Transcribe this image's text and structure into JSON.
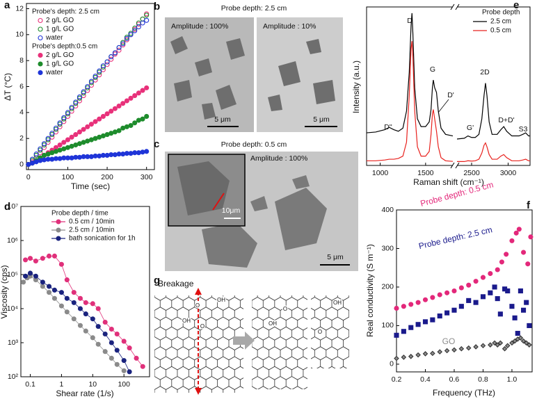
{
  "chart_data": [
    {
      "panel": "a",
      "type": "scatter",
      "x_label": "Time (sec)",
      "y_label": "ΔT (°C)",
      "xlim": [
        -5,
        320
      ],
      "ylim": [
        -0.4,
        12.4
      ],
      "xticks": [
        0,
        100,
        200,
        300
      ],
      "yticks": [
        0,
        2,
        4,
        6,
        8,
        10,
        12
      ],
      "x": [
        0,
        10,
        20,
        30,
        40,
        50,
        60,
        70,
        80,
        90,
        100,
        110,
        120,
        130,
        140,
        150,
        160,
        170,
        180,
        190,
        200,
        210,
        220,
        230,
        240,
        250,
        260,
        270,
        280,
        290,
        300
      ],
      "series_groups": [
        {
          "title": "Probe's depth: 2.5 cm",
          "series": [
            {
              "name": "2 g/L GO",
              "color": "#e8317a",
              "marker": "circle",
              "filled": false,
              "values": [
                0,
                0.2,
                0.5,
                0.9,
                1.3,
                1.7,
                2.1,
                2.5,
                2.9,
                3.3,
                3.7,
                4.1,
                4.5,
                4.9,
                5.3,
                5.7,
                6.1,
                6.5,
                6.9,
                7.3,
                7.7,
                8.1,
                8.5,
                8.8,
                9.2,
                9.6,
                10.0,
                10.4,
                10.8,
                11.2,
                11.6
              ]
            },
            {
              "name": "1 g/L GO",
              "color": "#1e8c2c",
              "marker": "circle",
              "filled": false,
              "values": [
                0,
                0.3,
                0.7,
                1.1,
                1.5,
                1.9,
                2.3,
                2.7,
                3.1,
                3.5,
                3.9,
                4.3,
                4.7,
                5.1,
                5.5,
                5.9,
                6.3,
                6.7,
                7.1,
                7.5,
                7.9,
                8.3,
                8.6,
                9.0,
                9.4,
                9.8,
                10.1,
                10.5,
                10.9,
                11.2,
                11.5
              ]
            },
            {
              "name": "water",
              "color": "#1f35d8",
              "marker": "circle",
              "filled": false,
              "values": [
                0,
                0.4,
                0.8,
                1.2,
                1.6,
                2.0,
                2.4,
                2.8,
                3.2,
                3.6,
                4.0,
                4.4,
                4.8,
                5.2,
                5.6,
                6.0,
                6.4,
                6.8,
                7.2,
                7.6,
                7.9,
                8.3,
                8.6,
                9.0,
                9.3,
                9.7,
                10.0,
                10.3,
                10.6,
                10.9,
                11.1
              ]
            }
          ]
        },
        {
          "title": "Probe's depth:0.5 cm",
          "series": [
            {
              "name": "2 g/L GO",
              "color": "#e8317a",
              "marker": "circle",
              "filled": true,
              "values": [
                0,
                0.1,
                0.3,
                0.5,
                0.7,
                0.9,
                1.1,
                1.3,
                1.5,
                1.7,
                1.9,
                2.1,
                2.3,
                2.5,
                2.7,
                2.9,
                3.1,
                3.3,
                3.5,
                3.7,
                3.9,
                4.1,
                4.3,
                4.5,
                4.7,
                4.9,
                5.1,
                5.3,
                5.5,
                5.7,
                5.9
              ]
            },
            {
              "name": "1 g/L GO",
              "color": "#1e8c2c",
              "marker": "circle",
              "filled": true,
              "values": [
                0,
                0.1,
                0.3,
                0.5,
                0.7,
                0.8,
                0.9,
                1.0,
                1.1,
                1.2,
                1.3,
                1.4,
                1.5,
                1.6,
                1.7,
                1.8,
                1.9,
                2.0,
                2.1,
                2.2,
                2.3,
                2.4,
                2.5,
                2.6,
                2.8,
                2.9,
                3.0,
                3.2,
                3.4,
                3.5,
                3.7
              ]
            },
            {
              "name": "water",
              "color": "#1f35d8",
              "marker": "circle",
              "filled": true,
              "values": [
                0,
                0.1,
                0.2,
                0.3,
                0.35,
                0.4,
                0.4,
                0.45,
                0.45,
                0.5,
                0.5,
                0.5,
                0.55,
                0.55,
                0.6,
                0.6,
                0.6,
                0.65,
                0.65,
                0.7,
                0.7,
                0.75,
                0.75,
                0.8,
                0.8,
                0.85,
                0.85,
                0.9,
                0.9,
                0.95,
                1.0
              ]
            }
          ]
        }
      ]
    },
    {
      "panel": "d",
      "type": "line",
      "x_label": "Shear rate (1/s)",
      "y_label": "Viscosity (cps)",
      "xlog": true,
      "ylog": true,
      "xlim": [
        0.05,
        660
      ],
      "ylim": [
        100,
        10000000
      ],
      "xticks": [
        0.1,
        1,
        10,
        100
      ],
      "yticks": [
        {
          "value": 100,
          "label": "10²"
        },
        {
          "value": 1000,
          "label": "10³"
        },
        {
          "value": 10000,
          "label": "10⁴"
        },
        {
          "value": 100000,
          "label": "10⁵"
        },
        {
          "value": 1000000,
          "label": "10⁶"
        },
        {
          "value": 10000000,
          "label": "10⁷"
        }
      ],
      "legend_title": "Probe depth / time",
      "series": [
        {
          "name": "0.5 cm / 10min",
          "color": "#e0307a",
          "marker": "circle",
          "filled": true,
          "x": [
            0.07,
            0.1,
            0.15,
            0.25,
            0.4,
            0.6,
            1,
            1.5,
            2.5,
            4,
            6,
            10,
            15,
            25,
            40,
            60,
            100,
            150,
            250,
            400
          ],
          "values": [
            270000,
            300000,
            250000,
            300000,
            350000,
            350000,
            200000,
            70000,
            30000,
            20000,
            15000,
            14000,
            10000,
            4000,
            2500,
            1800,
            1100,
            700,
            350,
            200
          ]
        },
        {
          "name": "2.5 cm / 10min",
          "color": "#8a8a8a",
          "marker": "circle",
          "filled": true,
          "x": [
            0.06,
            0.08,
            0.1,
            0.15,
            0.25,
            0.4,
            0.6,
            1,
            1.5,
            2.5,
            4,
            6,
            10,
            15,
            25,
            40,
            60,
            100
          ],
          "values": [
            60000,
            80000,
            90000,
            70000,
            45000,
            30000,
            20000,
            12000,
            8000,
            5000,
            3200,
            2200,
            1400,
            900,
            550,
            350,
            230,
            150
          ]
        },
        {
          "name": "bath sonication for 1h",
          "color": "#1a237e",
          "marker": "circle",
          "filled": true,
          "x": [
            0.07,
            0.1,
            0.15,
            0.25,
            0.4,
            0.6,
            1,
            1.5,
            2.5,
            4,
            6,
            10,
            15,
            25,
            40,
            60,
            100,
            150
          ],
          "values": [
            90000,
            110000,
            90000,
            60000,
            45000,
            35000,
            30000,
            20000,
            15000,
            10000,
            7000,
            5000,
            3000,
            1800,
            1000,
            600,
            300,
            140
          ]
        }
      ]
    },
    {
      "panel": "e",
      "type": "line",
      "x_label": "Raman shift (cm⁻¹)",
      "y_label": "Intensity (a.u.)",
      "ylim": [
        0,
        102
      ],
      "x_segments": [
        {
          "xlim": [
            850,
            1800
          ],
          "xticks": [
            1000,
            1500
          ]
        },
        {
          "xlim": [
            2300,
            3300
          ],
          "xticks": [
            2500,
            3000
          ]
        }
      ],
      "x": [
        850,
        950,
        1050,
        1100,
        1150,
        1200,
        1250,
        1290,
        1320,
        1340,
        1350,
        1360,
        1380,
        1410,
        1450,
        1500,
        1540,
        1560,
        1575,
        1585,
        1600,
        1620,
        1640,
        1670,
        1720,
        1800,
        2300,
        2400,
        2450,
        2500,
        2550,
        2600,
        2640,
        2670,
        2690,
        2710,
        2740,
        2780,
        2850,
        2900,
        2940,
        2980,
        3050,
        3150,
        3200,
        3240,
        3280,
        3300
      ],
      "legend_title": "Probe depth",
      "annotations": [
        "D",
        "G",
        "D'",
        "D''",
        "G'",
        "2D",
        "D+D'",
        "S3"
      ],
      "series": [
        {
          "name": "2.5 cm",
          "color": "#000000",
          "values": [
            21,
            21.5,
            23,
            24.5,
            23,
            22,
            24,
            35,
            60,
            90,
            98,
            85,
            50,
            30,
            25,
            25,
            28,
            36,
            50,
            55,
            50,
            47,
            35,
            24,
            20,
            19,
            17,
            17.5,
            19,
            18,
            18,
            20,
            30,
            45,
            53,
            45,
            28,
            20,
            20,
            23,
            25,
            22,
            19,
            19,
            20,
            21,
            19,
            19
          ]
        },
        {
          "name": "0.5 cm",
          "color": "#e8211d",
          "values": [
            3,
            3,
            3.5,
            4,
            4,
            4.5,
            6,
            15,
            45,
            75,
            80,
            70,
            35,
            12,
            6,
            6,
            9,
            20,
            33,
            36,
            30,
            22,
            12,
            5,
            3,
            2.6,
            2.5,
            2.5,
            3,
            2.8,
            3,
            4,
            8,
            13,
            14.5,
            12,
            7,
            4,
            4,
            6,
            7,
            5,
            3,
            3,
            3.5,
            4,
            3,
            3
          ]
        }
      ]
    },
    {
      "panel": "f",
      "type": "scatter",
      "x_label": "Frequency (THz)",
      "y_label": "Real conductivity (S m⁻¹)",
      "xlim": [
        0.2,
        1.14
      ],
      "ylim": [
        -20,
        400
      ],
      "xticks": [
        0.2,
        0.4,
        0.6,
        0.8,
        {
          "value": 1,
          "label": "1.0"
        }
      ],
      "yticks": [
        0,
        100,
        200,
        300,
        400
      ],
      "series": [
        {
          "name": "Probe depth: 0.5 cm",
          "color": "#e3287a",
          "marker": "circle",
          "filled": true,
          "x": [
            0.2,
            0.25,
            0.3,
            0.35,
            0.4,
            0.45,
            0.5,
            0.55,
            0.6,
            0.65,
            0.7,
            0.75,
            0.8,
            0.85,
            0.9,
            0.93,
            0.96,
            1.0,
            1.03,
            1.05,
            1.08,
            1.11,
            1.13
          ],
          "values": [
            145,
            150,
            155,
            160,
            167,
            173,
            180,
            185,
            190,
            198,
            205,
            215,
            225,
            235,
            245,
            265,
            285,
            320,
            340,
            350,
            290,
            260,
            330
          ]
        },
        {
          "name": "Probe depth: 2.5 cm",
          "color": "#1a1a8c",
          "marker": "square",
          "filled": true,
          "x": [
            0.2,
            0.25,
            0.3,
            0.35,
            0.4,
            0.45,
            0.5,
            0.55,
            0.6,
            0.65,
            0.7,
            0.75,
            0.8,
            0.85,
            0.88,
            0.9,
            0.92,
            0.95,
            0.97,
            1.0,
            1.02,
            1.04,
            1.06,
            1.08,
            1.1,
            1.12
          ],
          "values": [
            75,
            85,
            95,
            103,
            110,
            115,
            125,
            133,
            140,
            150,
            165,
            160,
            175,
            185,
            200,
            170,
            130,
            195,
            190,
            150,
            120,
            80,
            190,
            140,
            160,
            100
          ]
        },
        {
          "name": "GO",
          "color": "#8c8c8c",
          "marker": "diamond",
          "filled": true,
          "x": [
            0.2,
            0.25,
            0.3,
            0.35,
            0.4,
            0.45,
            0.5,
            0.55,
            0.6,
            0.65,
            0.7,
            0.75,
            0.8,
            0.85,
            0.88,
            0.9,
            0.92,
            0.95,
            0.97,
            1.0,
            1.02,
            1.04,
            1.06,
            1.08,
            1.1,
            1.12
          ],
          "values": [
            15,
            18,
            20,
            24,
            27,
            28,
            32,
            35,
            37,
            40,
            42,
            45,
            48,
            50,
            55,
            50,
            55,
            40,
            48,
            55,
            60,
            65,
            68,
            60,
            55,
            50
          ]
        }
      ]
    }
  ],
  "micrographs": [
    {
      "panel": "b",
      "title": "Probe depth: 2.5 cm",
      "frames": [
        {
          "label": "Amplitude : 100%",
          "scale_bar": "5 μm"
        },
        {
          "label": "Amplitude : 10%",
          "scale_bar": "5 μm"
        }
      ]
    },
    {
      "panel": "c",
      "title": "Probe depth: 0.5 cm",
      "frames": [
        {
          "label": "Amplitude : 100%",
          "scale_bar": "5 μm",
          "inset_scale_bar": "10μm"
        }
      ]
    }
  ],
  "scheme": {
    "panel": "g",
    "label": "Breakage",
    "groups": [
      "O",
      "OH",
      "OH",
      "O",
      "O",
      "OH",
      "OH",
      "O"
    ]
  }
}
